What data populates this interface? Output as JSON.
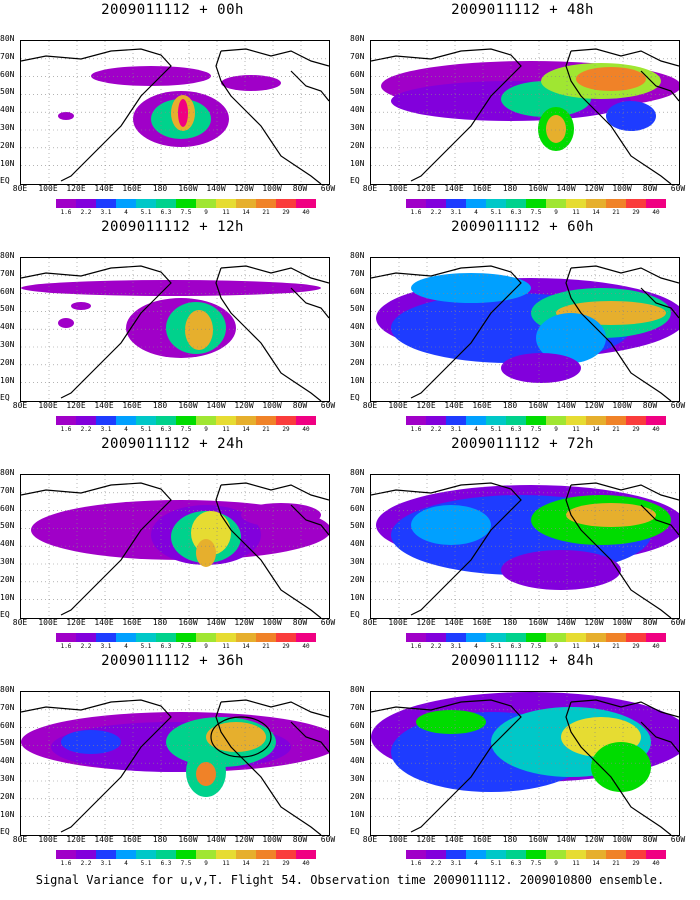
{
  "panels": [
    {
      "title": "2009011112 + 00h"
    },
    {
      "title": "2009011112 + 48h"
    },
    {
      "title": "2009011112 + 12h"
    },
    {
      "title": "2009011112 + 60h"
    },
    {
      "title": "2009011112 + 24h"
    },
    {
      "title": "2009011112 + 72h"
    },
    {
      "title": "2009011112 + 36h"
    },
    {
      "title": "2009011112 + 84h"
    }
  ],
  "lat_labels": [
    "80N",
    "70N",
    "60N",
    "50N",
    "40N",
    "30N",
    "20N",
    "10N",
    "EQ"
  ],
  "lon_labels": [
    "80E",
    "100E",
    "120E",
    "140E",
    "160E",
    "180",
    "160W",
    "140W",
    "120W",
    "100W",
    "80W",
    "60W"
  ],
  "colorbar": {
    "labels": [
      "1.6",
      "2.2",
      "3.1",
      "4",
      "5.1",
      "6.3",
      "7.5",
      "9",
      "11",
      "14",
      "21",
      "29",
      "40"
    ],
    "colors": [
      "#a000c8",
      "#8200dc",
      "#1e3cff",
      "#00a0ff",
      "#00c8c8",
      "#00d28c",
      "#00dc00",
      "#a0e632",
      "#e6dc32",
      "#e6af2d",
      "#f08228",
      "#fa3c3c",
      "#f00082"
    ]
  },
  "caption": "Signal Variance for u,v,T. Flight 54. Observation time 2009011112. 2009010800 ensemble."
}
